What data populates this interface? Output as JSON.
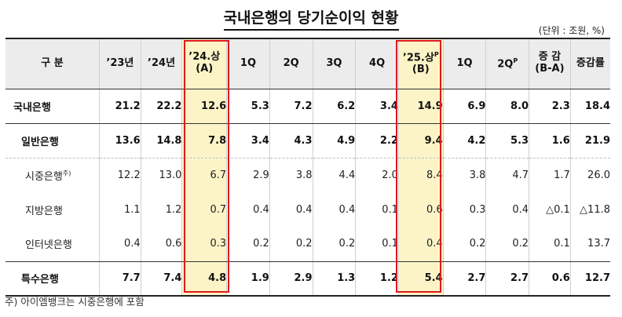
{
  "title": "국내은행의 당기순이익 현황",
  "unit": "(단위 : 조원, %)",
  "table": {
    "header": {
      "category": "구  분",
      "y23": "’23년",
      "y24": "’24년",
      "h24_line1": "’24.상",
      "h24_line2": "(A)",
      "q1": "1Q",
      "q2": "2Q",
      "q3": "3Q",
      "q4": "4Q",
      "h25_line1": "’25.상",
      "h25_sup": "P",
      "h25_line2": "(B)",
      "q1_25": "1Q",
      "q2_25": "2Q",
      "q2_25_sup": "P",
      "change_line1": "증  감",
      "change_line2": "(B-A)",
      "rate": "증감률"
    },
    "rows": [
      {
        "label": "국내은행",
        "label_sup": "",
        "values": [
          "21.2",
          "22.2",
          "12.6",
          "5.3",
          "7.2",
          "6.2",
          "3.4",
          "14.9",
          "6.9",
          "8.0",
          "2.3",
          "18.4"
        ]
      },
      {
        "label": "일반은행",
        "label_sup": "",
        "values": [
          "13.6",
          "14.8",
          "7.8",
          "3.4",
          "4.3",
          "4.9",
          "2.2",
          "9.4",
          "4.2",
          "5.3",
          "1.6",
          "21.9"
        ]
      },
      {
        "label": "시중은행",
        "label_sup": "주)",
        "values": [
          "12.2",
          "13.0",
          "6.7",
          "2.9",
          "3.8",
          "4.4",
          "2.0",
          "8.4",
          "3.8",
          "4.7",
          "1.7",
          "26.0"
        ]
      },
      {
        "label": "지방은행",
        "label_sup": "",
        "values": [
          "1.1",
          "1.2",
          "0.7",
          "0.4",
          "0.4",
          "0.4",
          "0.1",
          "0.6",
          "0.3",
          "0.4",
          "△0.1",
          "△11.8"
        ]
      },
      {
        "label": "인터넷은행",
        "label_sup": "",
        "values": [
          "0.4",
          "0.6",
          "0.3",
          "0.2",
          "0.2",
          "0.2",
          "0.1",
          "0.4",
          "0.2",
          "0.2",
          "0.1",
          "13.7"
        ]
      },
      {
        "label": "특수은행",
        "label_sup": "",
        "values": [
          "7.7",
          "7.4",
          "4.8",
          "1.9",
          "2.9",
          "1.3",
          "1.2",
          "5.4",
          "2.7",
          "2.7",
          "0.6",
          "12.7"
        ]
      }
    ]
  },
  "footnote": "주) 아이엠뱅크는 시중은행에 포함",
  "colors": {
    "highlight_fill": "#fcf4c6",
    "highlight_border": "#e0191f",
    "header_fill": "#ececec"
  }
}
